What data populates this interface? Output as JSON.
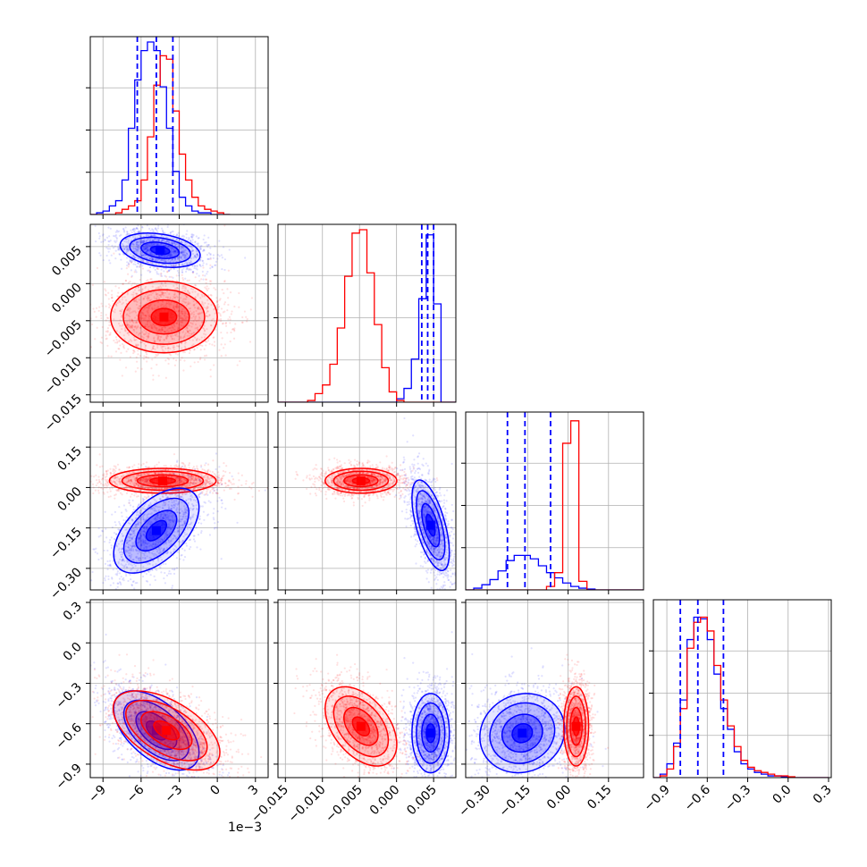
{
  "chart_data": {
    "type": "corner",
    "parameters": 4,
    "colors": {
      "red": "#ff0000",
      "blue": "#0000ff"
    },
    "series": [
      {
        "color": "#ff0000"
      },
      {
        "color": "#0000ff"
      }
    ],
    "grid": true,
    "axis_offset_label": "1e−3",
    "x_ticks": [
      [
        "−9",
        "−6",
        "−3",
        "0",
        "3"
      ],
      [
        "−0.015",
        "−0.010",
        "−0.005",
        "0.000",
        "0.005"
      ],
      [
        "−0.30",
        "−0.15",
        "0.00",
        "0.15"
      ],
      [
        "−0.9",
        "−0.6",
        "−0.3",
        "0.0",
        "0.3"
      ]
    ],
    "y_ticks": [
      [],
      [
        "0.005",
        "0.000",
        "−0.005",
        "−0.010",
        "−0.015"
      ],
      [
        "0.15",
        "0.00",
        "−0.15",
        "−0.30"
      ],
      [
        "0.3",
        "0.0",
        "−0.3",
        "−0.6",
        "−0.9"
      ]
    ],
    "ranges": [
      [
        -10,
        4
      ],
      [
        -0.016,
        0.008
      ],
      [
        -0.38,
        0.28
      ],
      [
        -1.0,
        0.32
      ]
    ],
    "quantile_lines_blue": [
      [
        -6.3,
        -4.8,
        -3.5
      ],
      [
        0.0034,
        0.0042,
        0.005
      ],
      [
        -0.225,
        -0.16,
        -0.065
      ],
      [
        -0.8,
        -0.67,
        -0.48
      ]
    ],
    "histograms": [
      {
        "bins": [
          -10,
          -9.5,
          -9,
          -8.5,
          -8,
          -7.5,
          -7,
          -6.5,
          -6,
          -5.5,
          -5,
          -4.5,
          -4,
          -3.5,
          -3,
          -2.5,
          -2,
          -1.5,
          -1,
          -0.5,
          0,
          0.5,
          1
        ],
        "blue": [
          0,
          0.01,
          0.02,
          0.05,
          0.08,
          0.2,
          0.5,
          0.78,
          0.95,
          1.0,
          0.95,
          0.74,
          0.5,
          0.25,
          0.1,
          0.05,
          0.02,
          0.01,
          0.01,
          0,
          0,
          0
        ],
        "red": [
          0,
          0,
          0,
          0,
          0.01,
          0.03,
          0.05,
          0.08,
          0.2,
          0.45,
          0.75,
          0.92,
          0.9,
          0.6,
          0.35,
          0.2,
          0.1,
          0.05,
          0.03,
          0.02,
          0.01,
          0
        ]
      },
      {
        "bins": [
          -0.016,
          -0.015,
          -0.014,
          -0.013,
          -0.012,
          -0.011,
          -0.01,
          -0.009,
          -0.008,
          -0.007,
          -0.006,
          -0.005,
          -0.004,
          -0.003,
          -0.002,
          -0.001,
          0.0,
          0.001,
          0.002,
          0.003,
          0.004,
          0.005,
          0.006,
          0.007,
          0.008
        ],
        "blue": [
          0,
          0,
          0,
          0,
          0,
          0,
          0,
          0,
          0,
          0,
          0,
          0,
          0,
          0,
          0,
          0,
          0.02,
          0.08,
          0.25,
          0.6,
          0.97,
          0.57,
          0.0,
          0,
          0
        ],
        "red": [
          0,
          0,
          0,
          0,
          0.01,
          0.05,
          0.1,
          0.22,
          0.43,
          0.73,
          0.98,
          1.0,
          0.75,
          0.45,
          0.2,
          0.06,
          0.01,
          0,
          0,
          0,
          0,
          0,
          0,
          0
        ]
      },
      {
        "bins": [
          -0.38,
          -0.35,
          -0.32,
          -0.29,
          -0.26,
          -0.23,
          -0.2,
          -0.17,
          -0.14,
          -0.11,
          -0.08,
          -0.05,
          -0.02,
          0.01,
          0.04,
          0.07,
          0.1,
          0.13,
          0.16,
          0.19,
          0.22,
          0.25,
          0.28
        ],
        "blue": [
          0,
          0.01,
          0.03,
          0.06,
          0.11,
          0.17,
          0.2,
          0.2,
          0.18,
          0.14,
          0.1,
          0.07,
          0.04,
          0.02,
          0.01,
          0.005,
          0,
          0,
          0,
          0,
          0,
          0
        ],
        "red": [
          0,
          0,
          0,
          0,
          0,
          0,
          0,
          0,
          0,
          0,
          0.02,
          0.1,
          0.85,
          0.98,
          0.05,
          0,
          0,
          0,
          0,
          0,
          0,
          0
        ]
      },
      {
        "bins": [
          -1.0,
          -0.95,
          -0.9,
          -0.85,
          -0.8,
          -0.75,
          -0.7,
          -0.65,
          -0.6,
          -0.55,
          -0.5,
          -0.45,
          -0.4,
          -0.35,
          -0.3,
          -0.25,
          -0.2,
          -0.15,
          -0.1,
          -0.05,
          0.0,
          0.05,
          0.1,
          0.15,
          0.2,
          0.25,
          0.3
        ],
        "blue": [
          0,
          0.02,
          0.08,
          0.2,
          0.45,
          0.8,
          0.93,
          0.92,
          0.8,
          0.6,
          0.4,
          0.28,
          0.15,
          0.08,
          0.05,
          0.03,
          0.02,
          0.01,
          0.01,
          0.005,
          0,
          0,
          0,
          0,
          0,
          0
        ],
        "red": [
          0,
          0.01,
          0.05,
          0.18,
          0.4,
          0.75,
          0.9,
          0.93,
          0.85,
          0.65,
          0.45,
          0.3,
          0.18,
          0.1,
          0.06,
          0.04,
          0.03,
          0.02,
          0.01,
          0.01,
          0.005,
          0,
          0,
          0,
          0,
          0
        ]
      }
    ],
    "blobs": [
      {
        "row": 1,
        "col": 0,
        "color": "blue",
        "cx": -4.5,
        "cy": 0.0045,
        "sx": 1.5,
        "sy": 0.0011,
        "rho": -0.3
      },
      {
        "row": 1,
        "col": 0,
        "color": "red",
        "cx": -4.2,
        "cy": -0.0045,
        "sx": 2.0,
        "sy": 0.0023,
        "rho": 0.0
      },
      {
        "row": 2,
        "col": 0,
        "color": "red",
        "cx": -4.3,
        "cy": 0.025,
        "sx": 2.0,
        "sy": 0.022,
        "rho": 0.0
      },
      {
        "row": 2,
        "col": 0,
        "color": "blue",
        "cx": -4.8,
        "cy": -0.16,
        "sx": 1.6,
        "sy": 0.075,
        "rho": 0.55
      },
      {
        "row": 2,
        "col": 1,
        "color": "red",
        "cx": -0.0048,
        "cy": 0.025,
        "sx": 0.0023,
        "sy": 0.022,
        "rho": 0.0
      },
      {
        "row": 2,
        "col": 1,
        "color": "blue",
        "cx": 0.0046,
        "cy": -0.14,
        "sx": 0.0012,
        "sy": 0.08,
        "rho": -0.6
      },
      {
        "row": 3,
        "col": 0,
        "color": "blue",
        "cx": -4.8,
        "cy": -0.65,
        "sx": 1.6,
        "sy": 0.14,
        "rho": -0.55
      },
      {
        "row": 3,
        "col": 0,
        "color": "red",
        "cx": -4.0,
        "cy": -0.65,
        "sx": 2.0,
        "sy": 0.14,
        "rho": -0.55
      },
      {
        "row": 3,
        "col": 1,
        "color": "red",
        "cx": -0.0048,
        "cy": -0.62,
        "sx": 0.0023,
        "sy": 0.14,
        "rho": -0.45
      },
      {
        "row": 3,
        "col": 1,
        "color": "blue",
        "cx": 0.0046,
        "cy": -0.67,
        "sx": 0.0012,
        "sy": 0.14,
        "rho": 0.0
      },
      {
        "row": 3,
        "col": 2,
        "color": "blue",
        "cx": -0.17,
        "cy": -0.67,
        "sx": 0.075,
        "sy": 0.14,
        "rho": 0.1
      },
      {
        "row": 3,
        "col": 2,
        "color": "red",
        "cx": 0.03,
        "cy": -0.62,
        "sx": 0.022,
        "sy": 0.14,
        "rho": 0.0
      }
    ]
  }
}
